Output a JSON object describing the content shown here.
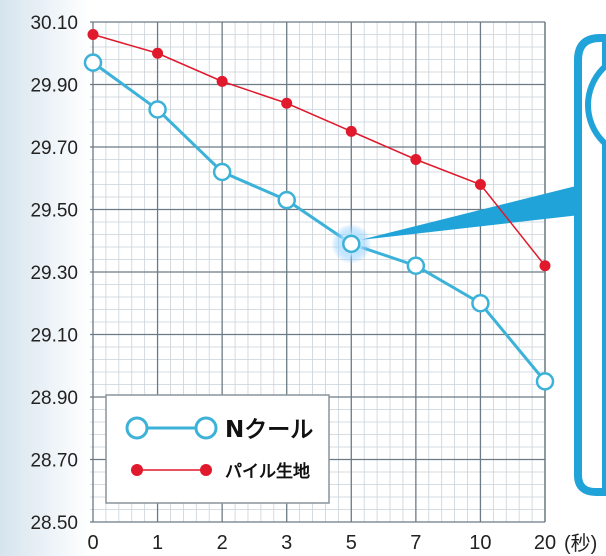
{
  "chart_data": {
    "type": "line",
    "categories": [
      "0",
      "1",
      "2",
      "3",
      "5",
      "7",
      "10",
      "20"
    ],
    "x_unit": "(秒)",
    "y_ticks": [
      "30.10",
      "29.90",
      "29.70",
      "29.50",
      "29.30",
      "29.10",
      "28.90",
      "28.70",
      "28.50"
    ],
    "ylim": [
      28.5,
      30.1
    ],
    "grid": true,
    "legend_position": "bottom-left",
    "series": [
      {
        "name": "Nクール",
        "color": "#3cb2d8",
        "marker": "open-circle",
        "values": [
          29.97,
          29.82,
          29.62,
          29.53,
          29.39,
          29.32,
          29.2,
          28.95
        ]
      },
      {
        "name": "パイル生地",
        "color": "#e0192c",
        "marker": "filled-circle",
        "values": [
          30.06,
          30.0,
          29.91,
          29.84,
          29.75,
          29.66,
          29.58,
          29.32
        ]
      }
    ],
    "highlight": {
      "series": 0,
      "index": 4
    }
  },
  "colors": {
    "grid_major": "#6b7a85",
    "grid_minor": "#c9d2d8",
    "callout": "#1fa3d8",
    "background_left": "#dfe9f0"
  }
}
